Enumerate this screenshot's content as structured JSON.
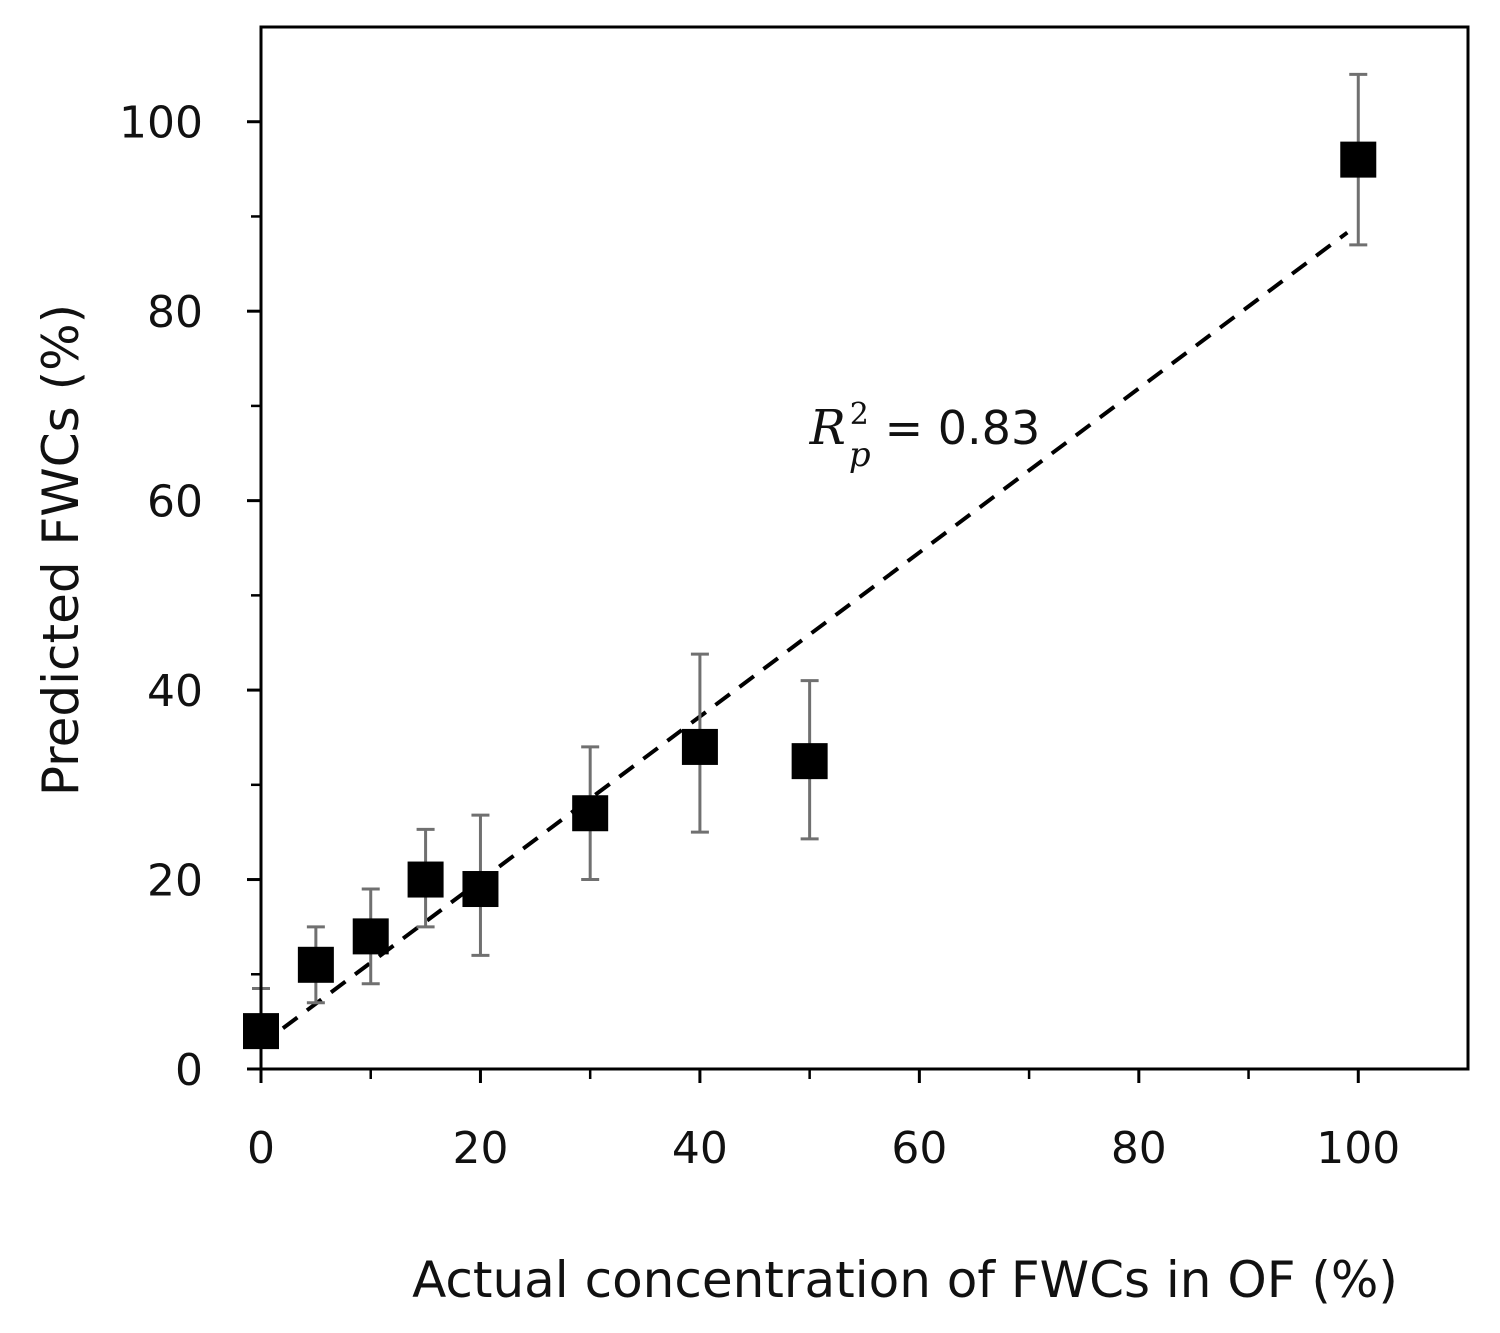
{
  "chart_data": {
    "type": "scatter",
    "title": "",
    "xlabel": "Actual concentration of FWCs in OF (%)",
    "ylabel": "Predicted FWCs (%)",
    "xlim": [
      0,
      110
    ],
    "ylim": [
      0,
      110
    ],
    "x_major_ticks": [
      0,
      20,
      40,
      60,
      80,
      100
    ],
    "x_minor_ticks": [
      10,
      30,
      50,
      70,
      90
    ],
    "y_major_ticks": [
      0,
      20,
      40,
      60,
      80,
      100
    ],
    "y_minor_ticks": [
      10,
      30,
      50,
      70,
      90
    ],
    "x_tick_labels": [
      "0",
      "20",
      "40",
      "60",
      "80",
      "100"
    ],
    "y_tick_labels": [
      "0",
      "20",
      "40",
      "60",
      "80",
      "100"
    ],
    "grid": false,
    "legend": "none",
    "series": [
      {
        "name": "Predicted",
        "marker": "square",
        "color": "#000000",
        "errorbar_color": "#707070",
        "x": [
          0,
          5,
          10,
          15,
          20,
          30,
          40,
          50,
          100
        ],
        "y": [
          4,
          11,
          14,
          20,
          19,
          27,
          34,
          32.5,
          96
        ],
        "y_err_low": [
          4,
          7,
          9,
          15,
          12,
          20,
          25,
          24.3,
          87
        ],
        "y_err_high": [
          8.5,
          15,
          19,
          25.3,
          26.8,
          34,
          43.8,
          41,
          105
        ]
      }
    ],
    "fit_line": {
      "style": "dashed",
      "color": "#000000",
      "x": [
        2,
        99
      ],
      "y": [
        4.3,
        88.3
      ]
    },
    "annotation": {
      "variable": "R",
      "subscript": "p",
      "superscript": "2",
      "text": "= 0.83",
      "x": 50,
      "y": 66
    }
  }
}
